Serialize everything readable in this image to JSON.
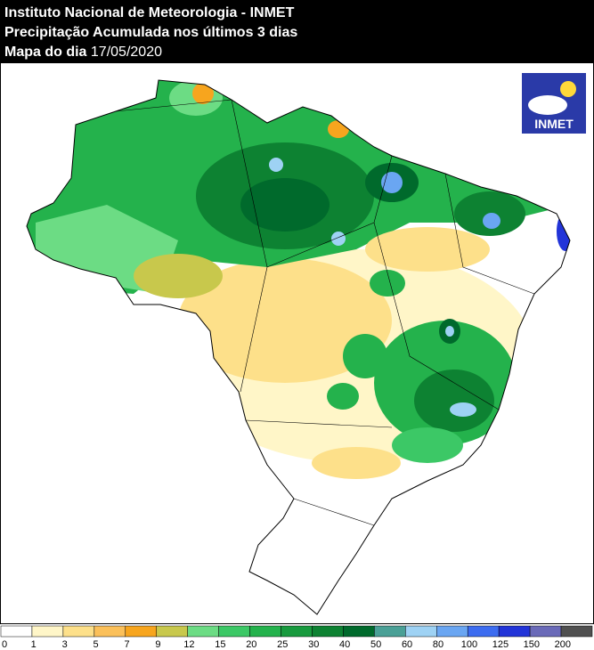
{
  "header": {
    "line1": "Instituto Nacional de Meteorologia - INMET",
    "line2": "Precipitação Acumulada nos últimos 3 dias",
    "line3_label": "Mapa do dia",
    "date": "17/05/2020"
  },
  "logo": {
    "text": "INMET"
  },
  "colorbar": {
    "labels": [
      0,
      1,
      3,
      5,
      7,
      9,
      12,
      15,
      20,
      25,
      30,
      40,
      50,
      60,
      80,
      100,
      125,
      150,
      200
    ],
    "colors": [
      "#ffffff",
      "#fff6c8",
      "#fde08a",
      "#fbc05a",
      "#f7a51e",
      "#c8c84c",
      "#6cdc84",
      "#3cc866",
      "#24b24c",
      "#189a3e",
      "#0d8232",
      "#006a2c",
      "#4aa096",
      "#9ed2f4",
      "#6aa6f2",
      "#3c6cf0",
      "#2234d8",
      "#6a6ab8",
      "#505050"
    ]
  }
}
